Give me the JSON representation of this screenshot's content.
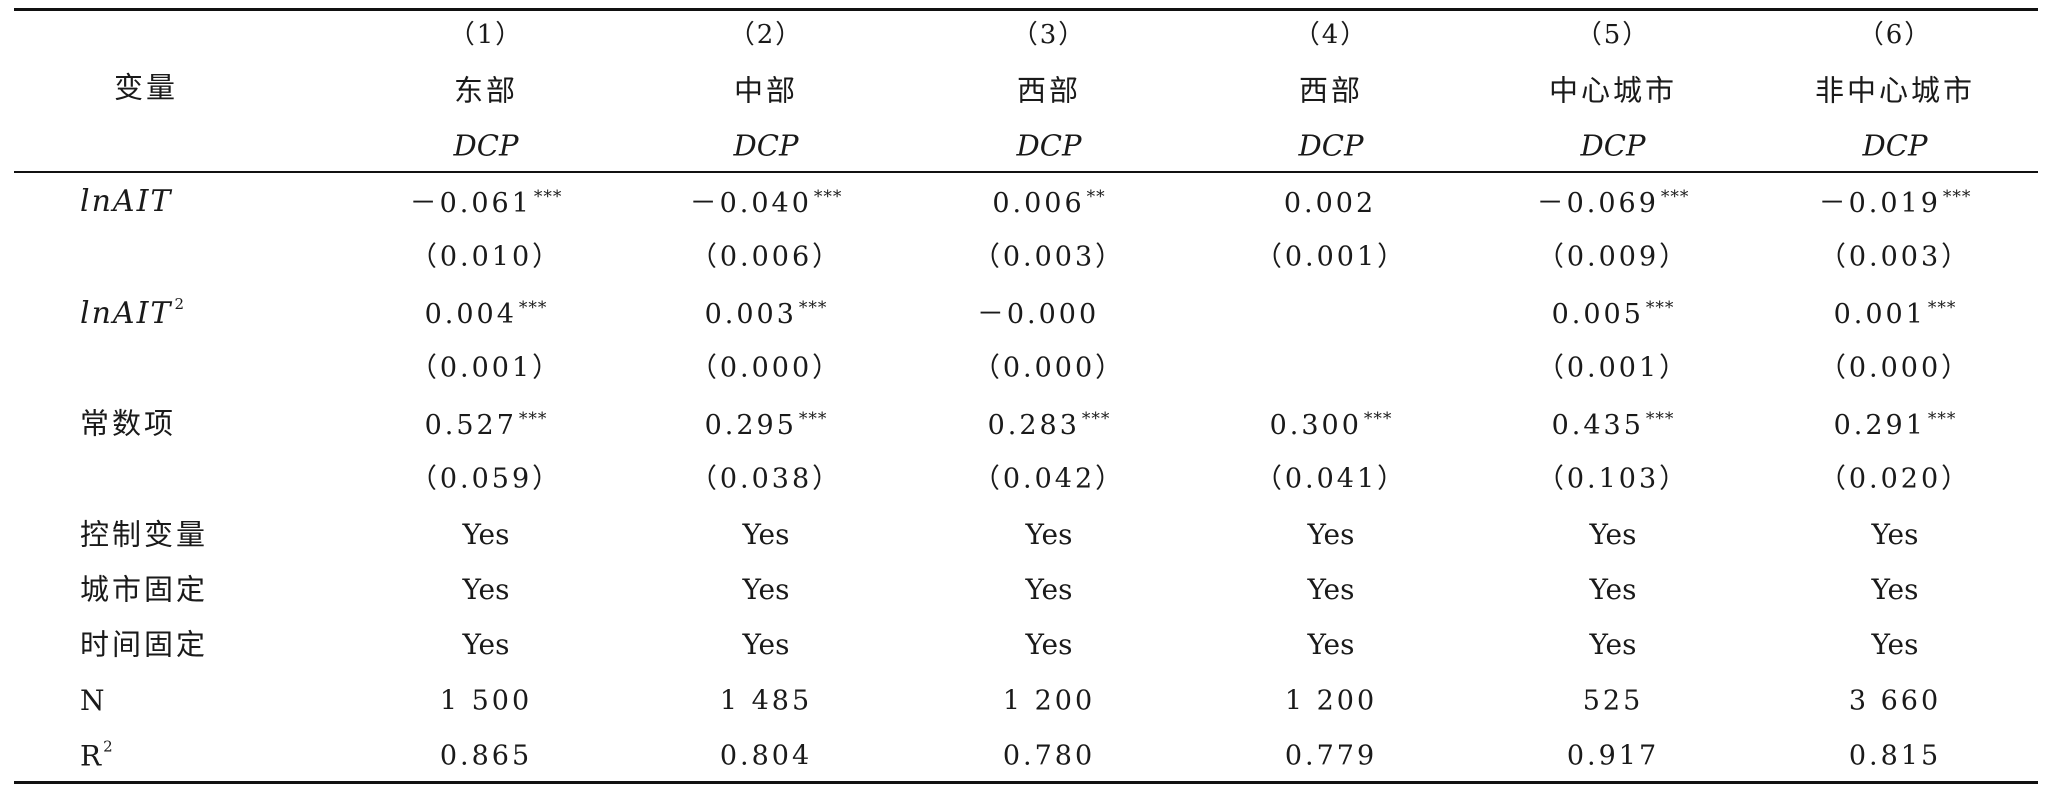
{
  "header": {
    "variable_label": "变量",
    "columns": [
      {
        "num": "（1）",
        "group": "东部",
        "dep": "DCP"
      },
      {
        "num": "（2）",
        "group": "中部",
        "dep": "DCP"
      },
      {
        "num": "（3）",
        "group": "西部",
        "dep": "DCP"
      },
      {
        "num": "（4）",
        "group": "西部",
        "dep": "DCP"
      },
      {
        "num": "（5）",
        "group": "中心城市",
        "dep": "DCP"
      },
      {
        "num": "（6）",
        "group": "非中心城市",
        "dep": "DCP"
      }
    ]
  },
  "rows": {
    "lnait": {
      "label": "lnAIT",
      "coef": [
        "－0.061",
        "－0.040",
        "0.006",
        "0.002",
        "－0.069",
        "－0.019"
      ],
      "stars": [
        "***",
        "***",
        "**",
        "",
        "***",
        "***"
      ],
      "se": [
        "（0.010）",
        "（0.006）",
        "（0.003）",
        "（0.001）",
        "（0.009）",
        "（0.003）"
      ]
    },
    "lnait2": {
      "label": "lnAIT",
      "exp": "2",
      "coef": [
        "0.004",
        "0.003",
        "－0.000",
        "",
        "0.005",
        "0.001"
      ],
      "stars": [
        "***",
        "***",
        "",
        "",
        "***",
        "***"
      ],
      "se": [
        "（0.001）",
        "（0.000）",
        "（0.000）",
        "",
        "（0.001）",
        "（0.000）"
      ]
    },
    "const": {
      "label": "常数项",
      "coef": [
        "0.527",
        "0.295",
        "0.283",
        "0.300",
        "0.435",
        "0.291"
      ],
      "stars": [
        "***",
        "***",
        "***",
        "***",
        "***",
        "***"
      ],
      "se": [
        "（0.059）",
        "（0.038）",
        "（0.042）",
        "（0.041）",
        "（0.103）",
        "（0.020）"
      ]
    },
    "controls": {
      "label": "控制变量",
      "values": [
        "Yes",
        "Yes",
        "Yes",
        "Yes",
        "Yes",
        "Yes"
      ]
    },
    "city_fe": {
      "label": "城市固定",
      "values": [
        "Yes",
        "Yes",
        "Yes",
        "Yes",
        "Yes",
        "Yes"
      ]
    },
    "time_fe": {
      "label": "时间固定",
      "values": [
        "Yes",
        "Yes",
        "Yes",
        "Yes",
        "Yes",
        "Yes"
      ]
    },
    "n": {
      "label": "N",
      "values": [
        "1 500",
        "1 485",
        "1 200",
        "1 200",
        "525",
        "3 660"
      ]
    },
    "r2": {
      "label": "R",
      "exp": "2",
      "values": [
        "0.865",
        "0.804",
        "0.780",
        "0.779",
        "0.917",
        "0.815"
      ]
    }
  }
}
